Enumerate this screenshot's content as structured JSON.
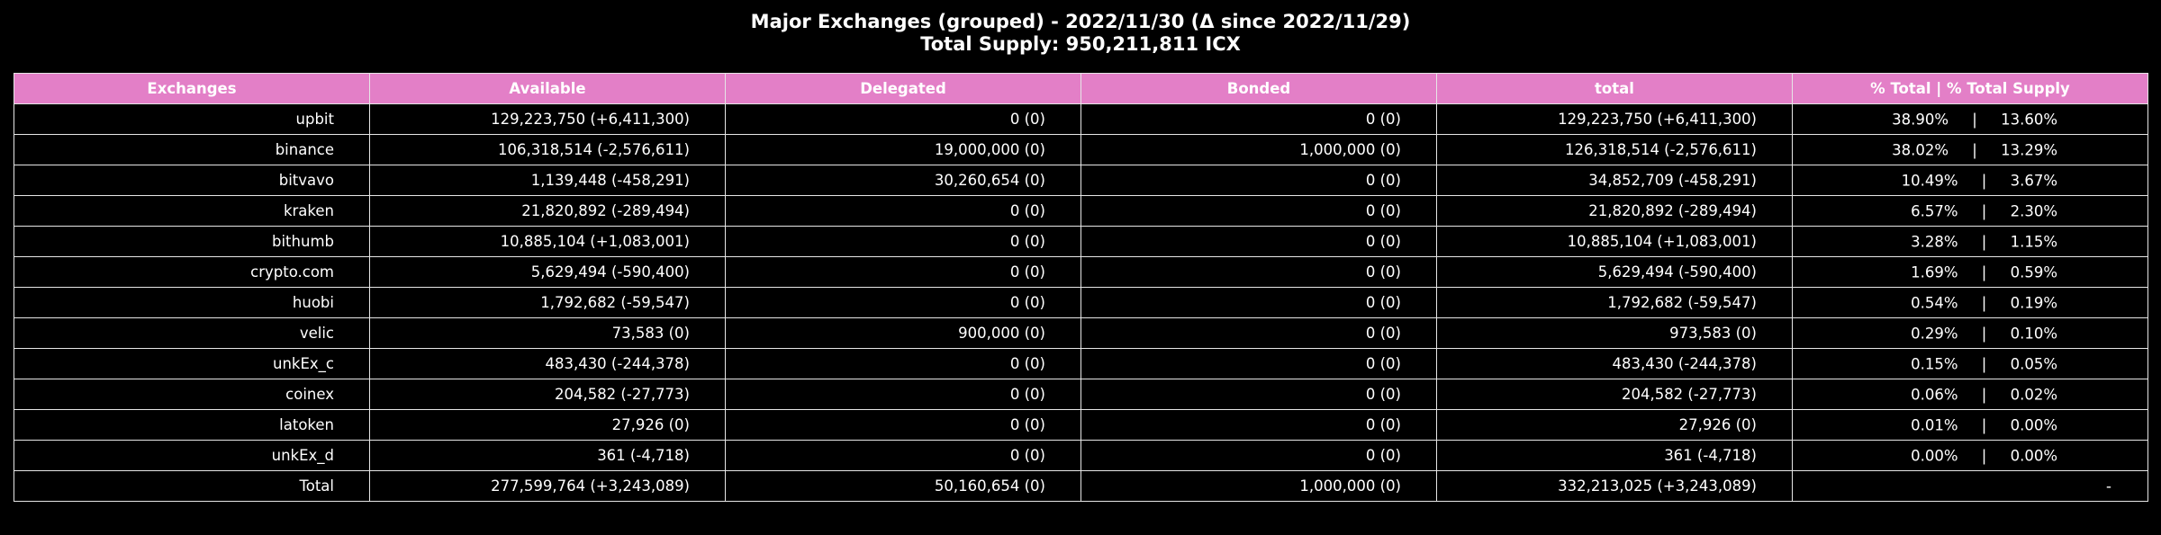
{
  "chart_data": {
    "type": "table",
    "title": "Major Exchanges (grouped) - 2022/11/30 (Δ since 2022/11/29)",
    "subtitle": "Total Supply: 950,211,811 ICX",
    "header_color": "#e37fc7",
    "background": "#000000",
    "columns": [
      "Exchanges",
      "Available",
      "Delegated",
      "Bonded",
      "total",
      "% Total     |     % Total Supply"
    ],
    "rows": [
      [
        "upbit",
        "129,223,750 (+6,411,300)",
        "0 (0)",
        "0 (0)",
        "129,223,750 (+6,411,300)",
        "38.90%     |     13.60%"
      ],
      [
        "binance",
        "106,318,514 (-2,576,611)",
        "19,000,000 (0)",
        "1,000,000 (0)",
        "126,318,514 (-2,576,611)",
        "38.02%     |     13.29%"
      ],
      [
        "bitvavo",
        "1,139,448 (-458,291)",
        "30,260,654 (0)",
        "0 (0)",
        "34,852,709 (-458,291)",
        "10.49%     |     3.67%"
      ],
      [
        "kraken",
        "21,820,892 (-289,494)",
        "0 (0)",
        "0 (0)",
        "21,820,892 (-289,494)",
        "6.57%     |     2.30%"
      ],
      [
        "bithumb",
        "10,885,104 (+1,083,001)",
        "0 (0)",
        "0 (0)",
        "10,885,104 (+1,083,001)",
        "3.28%     |     1.15%"
      ],
      [
        "crypto.com",
        "5,629,494 (-590,400)",
        "0 (0)",
        "0 (0)",
        "5,629,494 (-590,400)",
        "1.69%     |     0.59%"
      ],
      [
        "huobi",
        "1,792,682 (-59,547)",
        "0 (0)",
        "0 (0)",
        "1,792,682 (-59,547)",
        "0.54%     |     0.19%"
      ],
      [
        "velic",
        "73,583 (0)",
        "900,000 (0)",
        "0 (0)",
        "973,583 (0)",
        "0.29%     |     0.10%"
      ],
      [
        "unkEx_c",
        "483,430 (-244,378)",
        "0 (0)",
        "0 (0)",
        "483,430 (-244,378)",
        "0.15%     |     0.05%"
      ],
      [
        "coinex",
        "204,582 (-27,773)",
        "0 (0)",
        "0 (0)",
        "204,582 (-27,773)",
        "0.06%     |     0.02%"
      ],
      [
        "latoken",
        "27,926 (0)",
        "0 (0)",
        "0 (0)",
        "27,926 (0)",
        "0.01%     |     0.00%"
      ],
      [
        "unkEx_d",
        "361 (-4,718)",
        "0 (0)",
        "0 (0)",
        "361 (-4,718)",
        "0.00%     |     0.00%"
      ],
      [
        "Total",
        "277,599,764 (+3,243,089)",
        "50,160,654 (0)",
        "1,000,000 (0)",
        "332,213,025 (+3,243,089)",
        "-"
      ]
    ]
  }
}
